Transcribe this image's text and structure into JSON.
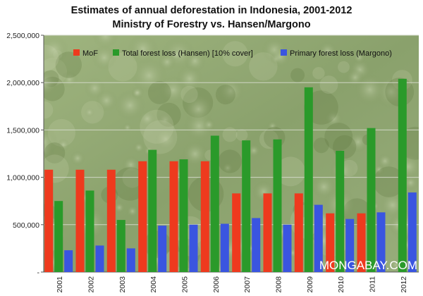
{
  "chart_data": {
    "type": "bar",
    "title": "Estimates of annual deforestation in Indonesia, 2001-2012",
    "subtitle": "Ministry of Forestry vs. Hansen/Margono",
    "categories": [
      "2001",
      "2002",
      "2003",
      "2004",
      "2005",
      "2006",
      "2007",
      "2008",
      "2009",
      "2010",
      "2011",
      "2012"
    ],
    "series": [
      {
        "name": "MoF",
        "color": "#ee3a1e",
        "values": [
          1080000,
          1080000,
          1080000,
          1170000,
          1170000,
          1170000,
          830000,
          830000,
          830000,
          620000,
          620000,
          null
        ]
      },
      {
        "name": "Total forest loss (Hansen) [10% cover]",
        "color": "#2a9a2a",
        "values": [
          750000,
          860000,
          550000,
          1290000,
          1190000,
          1440000,
          1390000,
          1400000,
          1950000,
          1280000,
          1520000,
          2040000
        ]
      },
      {
        "name": "Primary forest loss (Margono)",
        "color": "#3a55e0",
        "values": [
          230000,
          280000,
          250000,
          490000,
          500000,
          510000,
          570000,
          500000,
          710000,
          560000,
          630000,
          840000
        ]
      }
    ],
    "y_ticks": [
      "-",
      "500,000",
      "1,000,000",
      "1,500,000",
      "2,000,000",
      "2,500,000"
    ],
    "ylim": [
      0,
      2500000
    ],
    "grid": true,
    "legend_position": "top",
    "watermark": "MONGABAY.COM",
    "background": "aerial rainforest canopy photograph"
  }
}
